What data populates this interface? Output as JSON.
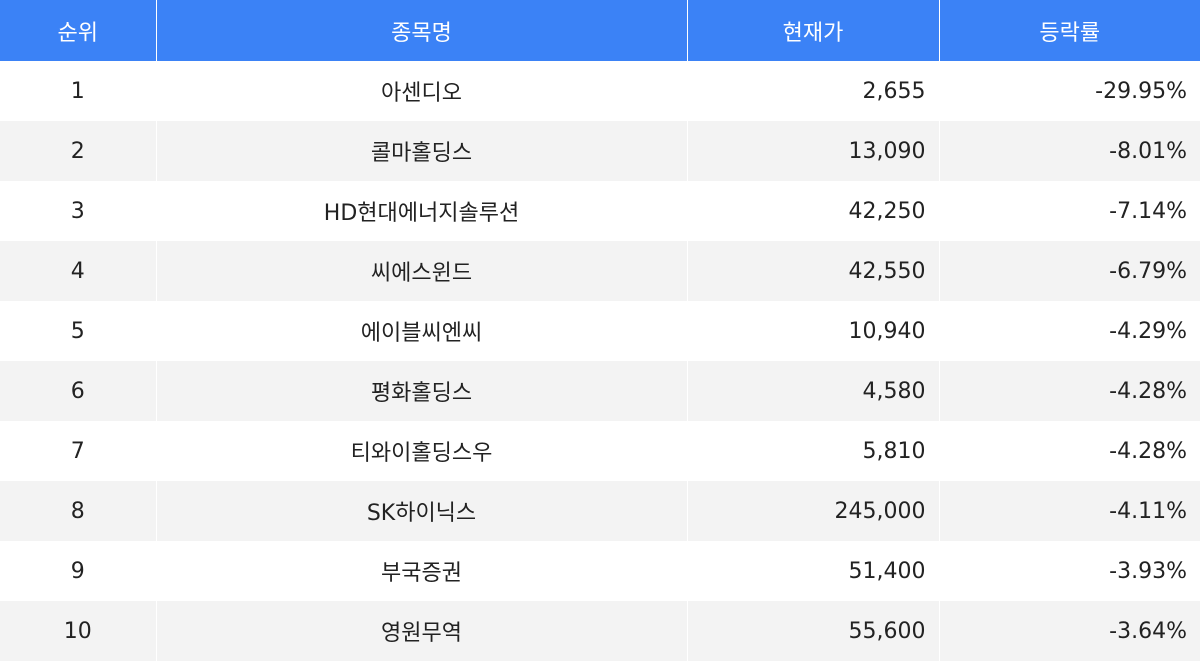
{
  "colors": {
    "header_bg": "#3b82f6",
    "header_text": "#ffffff",
    "row_alt_bg": "#f3f3f3",
    "text": "#222222"
  },
  "headers": {
    "rank": "순위",
    "name": "종목명",
    "price": "현재가",
    "change": "등락률"
  },
  "rows": [
    {
      "rank": "1",
      "name": "아센디오",
      "price": "2,655",
      "change": "-29.95%"
    },
    {
      "rank": "2",
      "name": "콜마홀딩스",
      "price": "13,090",
      "change": "-8.01%"
    },
    {
      "rank": "3",
      "name": "HD현대에너지솔루션",
      "price": "42,250",
      "change": "-7.14%"
    },
    {
      "rank": "4",
      "name": "씨에스윈드",
      "price": "42,550",
      "change": "-6.79%"
    },
    {
      "rank": "5",
      "name": "에이블씨엔씨",
      "price": "10,940",
      "change": "-4.29%"
    },
    {
      "rank": "6",
      "name": "평화홀딩스",
      "price": "4,580",
      "change": "-4.28%"
    },
    {
      "rank": "7",
      "name": "티와이홀딩스우",
      "price": "5,810",
      "change": "-4.28%"
    },
    {
      "rank": "8",
      "name": "SK하이닉스",
      "price": "245,000",
      "change": "-4.11%"
    },
    {
      "rank": "9",
      "name": "부국증권",
      "price": "51,400",
      "change": "-3.93%"
    },
    {
      "rank": "10",
      "name": "영원무역",
      "price": "55,600",
      "change": "-3.64%"
    }
  ]
}
